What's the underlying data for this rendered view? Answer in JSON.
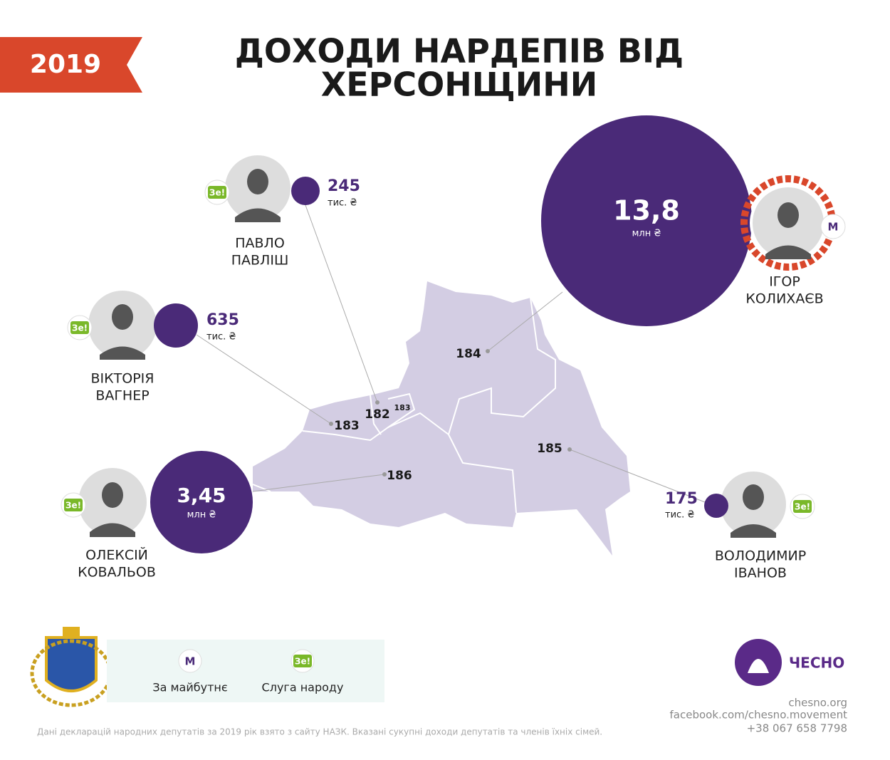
{
  "header": {
    "year": "2019",
    "title": [
      "ДОХОДИ НАРДЕПІВ ВІД",
      "ХЕРСОНЩИНИ"
    ]
  },
  "deputies": [
    {
      "name": [
        "ПАВЛО",
        "ПАВЛІШ"
      ],
      "amount": "245",
      "unit": "тис. ₴"
    },
    {
      "name": [
        "ВІКТОРІЯ",
        "ВАГНЕР"
      ],
      "amount": "635",
      "unit": "тис. ₴"
    },
    {
      "name": [
        "ОЛЕКСІЙ",
        "КОВАЛЬОВ"
      ],
      "amount": "3,45",
      "unit": "млн ₴"
    },
    {
      "name": [
        "ІГОР",
        "КОЛИХАЄВ"
      ],
      "amount": "13,8",
      "unit": "млн ₴"
    },
    {
      "name": [
        "ВОЛОДИМИР",
        "ІВАНОВ"
      ],
      "amount": "175",
      "unit": "тис. ₴"
    }
  ],
  "map": {
    "districts": [
      "184",
      "183",
      "182",
      "183",
      "185",
      "186"
    ]
  },
  "legend": {
    "items": [
      {
        "icon": "М",
        "label": "За майбутнє"
      },
      {
        "icon": "Зе!",
        "label": "Слуга народу"
      }
    ]
  },
  "footer": {
    "logo": "ЧЕСНО",
    "contacts": [
      "chesno.org",
      "facebook.com/chesno.movement",
      "+38 067 658 7798"
    ],
    "note": "Дані декларацій народних депутатів за 2019 рік взято з сайту НАЗК. Вказані сукупні доходи депутатів та членів їхніх сімей."
  }
}
